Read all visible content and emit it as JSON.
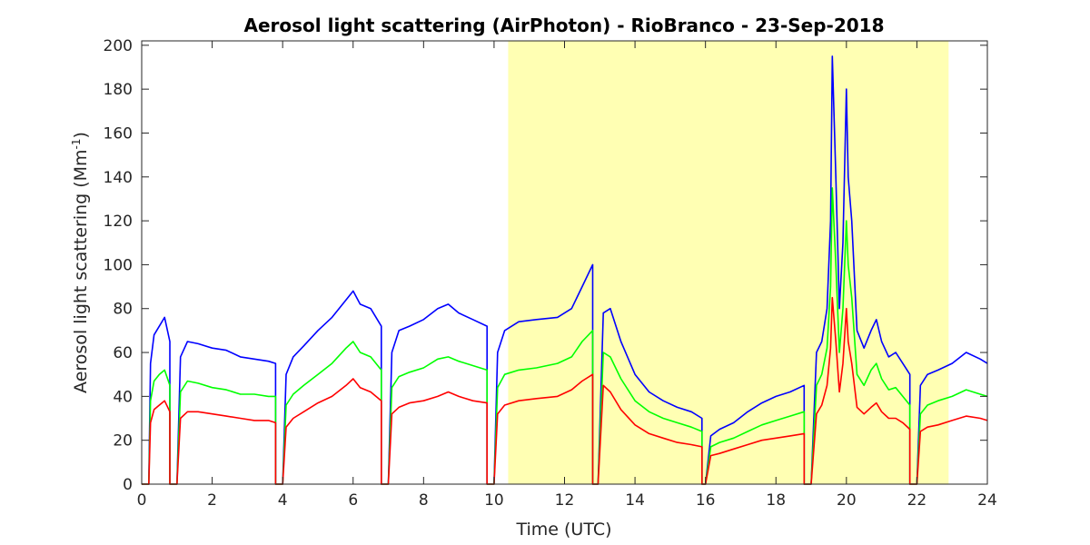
{
  "chart_data": {
    "type": "line",
    "title": "Aerosol light scattering (AirPhoton) - RioBranco - 23-Sep-2018",
    "xlabel": "Time (UTC)",
    "ylabel_prefix": "Aerosol light scattering (Mm",
    "ylabel_sup": "-1",
    "ylabel_suffix": ")",
    "xlim": [
      0,
      24
    ],
    "ylim": [
      0,
      202
    ],
    "xticks": [
      0,
      2,
      4,
      6,
      8,
      10,
      12,
      14,
      16,
      18,
      20,
      22,
      24
    ],
    "yticks": [
      0,
      20,
      40,
      60,
      80,
      100,
      120,
      140,
      160,
      180,
      200
    ],
    "grid": false,
    "daylight_band": {
      "x_start": 10.4,
      "x_end": 22.9,
      "color": "#ffffb3"
    },
    "series": [
      {
        "color": "#0000ff",
        "x": [
          0,
          0.2,
          0.25,
          0.35,
          0.5,
          0.65,
          0.8,
          0.8,
          0.95,
          0.95,
          1.0,
          1.1,
          1.3,
          1.6,
          2.0,
          2.4,
          2.8,
          3.2,
          3.6,
          3.8,
          3.8,
          4.0,
          4.0,
          4.1,
          4.3,
          4.6,
          5.0,
          5.4,
          5.8,
          6.0,
          6.2,
          6.5,
          6.8,
          6.8,
          7.0,
          7.0,
          7.1,
          7.3,
          7.6,
          8.0,
          8.4,
          8.7,
          9.0,
          9.4,
          9.8,
          9.8,
          10.0,
          10.0,
          10.1,
          10.3,
          10.7,
          11.2,
          11.8,
          12.2,
          12.5,
          12.8,
          12.8,
          12.95,
          12.95,
          13.1,
          13.3,
          13.6,
          14.0,
          14.4,
          14.8,
          15.2,
          15.6,
          15.9,
          15.9,
          16.0,
          16.0,
          16.15,
          16.4,
          16.8,
          17.2,
          17.6,
          18.0,
          18.4,
          18.8,
          18.8,
          19.0,
          19.0,
          19.15,
          19.3,
          19.45,
          19.55,
          19.6,
          19.7,
          19.8,
          19.9,
          20.0,
          20.05,
          20.15,
          20.3,
          20.5,
          20.7,
          20.85,
          21.0,
          21.2,
          21.4,
          21.6,
          21.8,
          21.8,
          22.0,
          22.0,
          22.1,
          22.3,
          22.6,
          23.0,
          23.4,
          23.8,
          24.0
        ],
        "y": [
          0,
          0,
          55,
          68,
          72,
          76,
          65,
          0,
          0,
          0,
          0,
          58,
          65,
          64,
          62,
          61,
          58,
          57,
          56,
          55,
          0,
          0,
          0,
          50,
          58,
          63,
          70,
          76,
          84,
          88,
          82,
          80,
          72,
          0,
          0,
          0,
          60,
          70,
          72,
          75,
          80,
          82,
          78,
          75,
          72,
          0,
          0,
          0,
          60,
          70,
          74,
          75,
          76,
          80,
          90,
          100,
          0,
          0,
          0,
          78,
          80,
          65,
          50,
          42,
          38,
          35,
          33,
          30,
          0,
          0,
          0,
          22,
          25,
          28,
          33,
          37,
          40,
          42,
          45,
          0,
          0,
          0,
          60,
          65,
          80,
          120,
          195,
          140,
          80,
          110,
          180,
          140,
          120,
          70,
          62,
          70,
          75,
          65,
          58,
          60,
          55,
          50,
          0,
          0,
          0,
          45,
          50,
          52,
          55,
          60,
          57,
          55
        ]
      },
      {
        "color": "#00ff00",
        "x": [
          0,
          0.2,
          0.25,
          0.35,
          0.5,
          0.65,
          0.8,
          0.8,
          0.95,
          0.95,
          1.0,
          1.1,
          1.3,
          1.6,
          2.0,
          2.4,
          2.8,
          3.2,
          3.6,
          3.8,
          3.8,
          4.0,
          4.0,
          4.1,
          4.3,
          4.6,
          5.0,
          5.4,
          5.8,
          6.0,
          6.2,
          6.5,
          6.8,
          6.8,
          7.0,
          7.0,
          7.1,
          7.3,
          7.6,
          8.0,
          8.4,
          8.7,
          9.0,
          9.4,
          9.8,
          9.8,
          10.0,
          10.0,
          10.1,
          10.3,
          10.7,
          11.2,
          11.8,
          12.2,
          12.5,
          12.8,
          12.8,
          12.95,
          12.95,
          13.1,
          13.3,
          13.6,
          14.0,
          14.4,
          14.8,
          15.2,
          15.6,
          15.9,
          15.9,
          16.0,
          16.0,
          16.15,
          16.4,
          16.8,
          17.2,
          17.6,
          18.0,
          18.4,
          18.8,
          18.8,
          19.0,
          19.0,
          19.15,
          19.3,
          19.45,
          19.55,
          19.6,
          19.7,
          19.8,
          19.9,
          20.0,
          20.05,
          20.15,
          20.3,
          20.5,
          20.7,
          20.85,
          21.0,
          21.2,
          21.4,
          21.6,
          21.8,
          21.8,
          22.0,
          22.0,
          22.1,
          22.3,
          22.6,
          23.0,
          23.4,
          23.8,
          24.0
        ],
        "y": [
          0,
          0,
          38,
          47,
          50,
          52,
          45,
          0,
          0,
          0,
          0,
          42,
          47,
          46,
          44,
          43,
          41,
          41,
          40,
          40,
          0,
          0,
          0,
          36,
          41,
          45,
          50,
          55,
          62,
          65,
          60,
          58,
          52,
          0,
          0,
          0,
          44,
          49,
          51,
          53,
          57,
          58,
          56,
          54,
          52,
          0,
          0,
          0,
          44,
          50,
          52,
          53,
          55,
          58,
          65,
          70,
          0,
          0,
          0,
          60,
          58,
          48,
          38,
          33,
          30,
          28,
          26,
          24,
          0,
          0,
          0,
          17,
          19,
          21,
          24,
          27,
          29,
          31,
          33,
          0,
          0,
          0,
          45,
          50,
          62,
          90,
          135,
          100,
          60,
          80,
          120,
          100,
          85,
          50,
          45,
          52,
          55,
          48,
          43,
          44,
          40,
          36,
          0,
          0,
          0,
          32,
          36,
          38,
          40,
          43,
          41,
          40
        ]
      },
      {
        "color": "#ff0000",
        "x": [
          0,
          0.2,
          0.25,
          0.35,
          0.5,
          0.65,
          0.8,
          0.8,
          0.95,
          0.95,
          1.0,
          1.1,
          1.3,
          1.6,
          2.0,
          2.4,
          2.8,
          3.2,
          3.6,
          3.8,
          3.8,
          4.0,
          4.0,
          4.1,
          4.3,
          4.6,
          5.0,
          5.4,
          5.8,
          6.0,
          6.2,
          6.5,
          6.8,
          6.8,
          7.0,
          7.0,
          7.1,
          7.3,
          7.6,
          8.0,
          8.4,
          8.7,
          9.0,
          9.4,
          9.8,
          9.8,
          10.0,
          10.0,
          10.1,
          10.3,
          10.7,
          11.2,
          11.8,
          12.2,
          12.5,
          12.8,
          12.8,
          12.95,
          12.95,
          13.1,
          13.3,
          13.6,
          14.0,
          14.4,
          14.8,
          15.2,
          15.6,
          15.9,
          15.9,
          16.0,
          16.0,
          16.15,
          16.4,
          16.8,
          17.2,
          17.6,
          18.0,
          18.4,
          18.8,
          18.8,
          19.0,
          19.0,
          19.15,
          19.3,
          19.45,
          19.55,
          19.6,
          19.7,
          19.8,
          19.9,
          20.0,
          20.05,
          20.15,
          20.3,
          20.5,
          20.7,
          20.85,
          21.0,
          21.2,
          21.4,
          21.6,
          21.8,
          21.8,
          22.0,
          22.0,
          22.1,
          22.3,
          22.6,
          23.0,
          23.4,
          23.8,
          24.0
        ],
        "y": [
          0,
          0,
          28,
          34,
          36,
          38,
          33,
          0,
          0,
          0,
          0,
          30,
          33,
          33,
          32,
          31,
          30,
          29,
          29,
          28,
          0,
          0,
          0,
          26,
          30,
          33,
          37,
          40,
          45,
          48,
          44,
          42,
          38,
          0,
          0,
          0,
          32,
          35,
          37,
          38,
          40,
          42,
          40,
          38,
          37,
          0,
          0,
          0,
          32,
          36,
          38,
          39,
          40,
          43,
          47,
          50,
          0,
          0,
          0,
          45,
          42,
          34,
          27,
          23,
          21,
          19,
          18,
          17,
          0,
          0,
          0,
          13,
          14,
          16,
          18,
          20,
          21,
          22,
          23,
          0,
          0,
          0,
          32,
          36,
          45,
          62,
          85,
          65,
          42,
          55,
          80,
          65,
          55,
          35,
          32,
          35,
          37,
          33,
          30,
          30,
          28,
          25,
          0,
          0,
          0,
          24,
          26,
          27,
          29,
          31,
          30,
          29
        ]
      }
    ]
  }
}
